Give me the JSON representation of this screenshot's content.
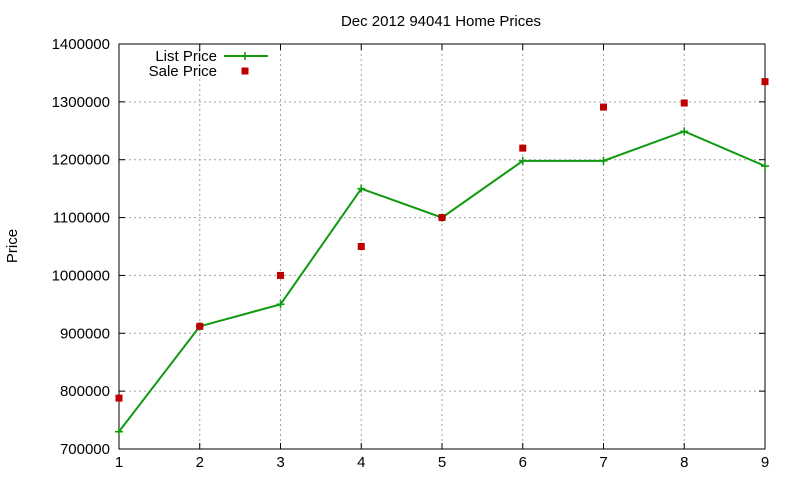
{
  "chart_data": {
    "type": "line",
    "title": "Dec 2012 94041 Home Prices",
    "xlabel": "",
    "ylabel": "Price",
    "x": [
      1,
      2,
      3,
      4,
      5,
      6,
      7,
      8,
      9
    ],
    "xlim": [
      1,
      9
    ],
    "ylim": [
      700000,
      1400000
    ],
    "xticks": [
      "1",
      "2",
      "3",
      "4",
      "5",
      "6",
      "7",
      "8",
      "9"
    ],
    "yticks": [
      "700000",
      "800000",
      "900000",
      "1000000",
      "1100000",
      "1200000",
      "1300000",
      "1400000"
    ],
    "grid": true,
    "legend_position": "top-left",
    "series": [
      {
        "name": "List Price",
        "style": "line-plus",
        "color": "#109a10",
        "values": [
          730000,
          912000,
          950000,
          1150000,
          1100000,
          1198000,
          1198000,
          1249000,
          1189000
        ]
      },
      {
        "name": "Sale Price",
        "style": "square-points",
        "color": "#c00000",
        "values": [
          788000,
          912000,
          1000000,
          1050000,
          1100000,
          1220000,
          1291000,
          1298000,
          1335000
        ]
      }
    ]
  }
}
